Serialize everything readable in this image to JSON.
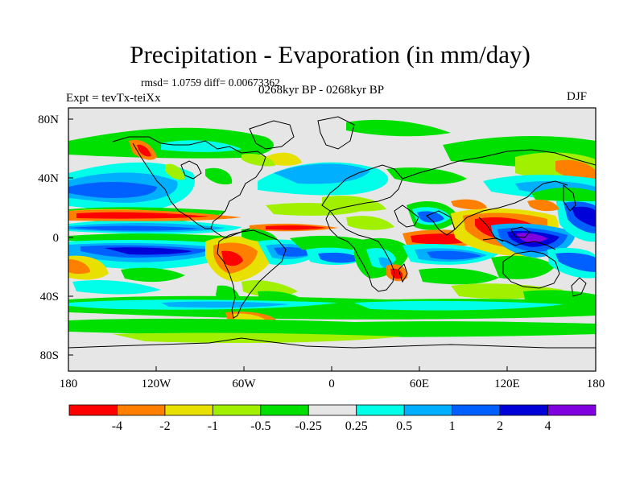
{
  "title": "Precipitation - Evaporation (in mm/day)",
  "stats_line": "rmsd= 1.0759 diff= 0.00673362",
  "period_line": "0268kyr BP - 0268kyr BP",
  "experiment_line": "Expt = tevTx-teiXx",
  "season": "DJF",
  "y_ticks": [
    "80N",
    "40N",
    "0",
    "40S",
    "80S"
  ],
  "x_ticks": [
    "180",
    "120W",
    "60W",
    "0",
    "60E",
    "120E",
    "180"
  ],
  "colorbar": {
    "colors": [
      "#ff0000",
      "#ff8000",
      "#e8e000",
      "#a0f000",
      "#00e000",
      "#e6e6e6",
      "#00ffe8",
      "#00b0ff",
      "#0060ff",
      "#0000d8",
      "#8000e0"
    ],
    "labels": [
      "-4",
      "-2",
      "-1",
      "-0.5",
      "-0.25",
      "0.25",
      "0.5",
      "1",
      "2",
      "4"
    ]
  },
  "map": {
    "background_color": "#e6e6e6",
    "coastline_color": "#000000"
  }
}
